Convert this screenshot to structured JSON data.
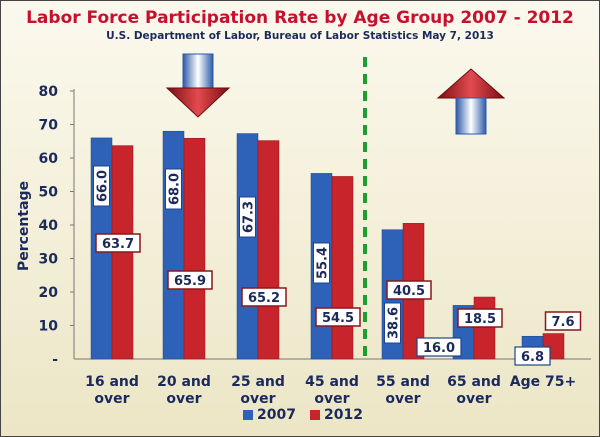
{
  "chart_data": {
    "type": "bar",
    "title": "Labor Force Participation Rate by Age Group 2007 - 2012",
    "subtitle": "U.S. Department of Labor, Bureau of Labor Statistics May 7, 2013",
    "ylabel": "Percentage",
    "xlabel": "",
    "ylim": [
      0,
      80
    ],
    "yticks": [
      80,
      70,
      60,
      50,
      40,
      30,
      20,
      10
    ],
    "y_zero_label": "-",
    "grid": false,
    "legend_position": "bottom",
    "categories": [
      [
        "16 and",
        "over"
      ],
      [
        "20 and",
        "over"
      ],
      [
        "25 and",
        "over"
      ],
      [
        "45 and",
        "over"
      ],
      [
        "55 and",
        "over"
      ],
      [
        "65 and",
        "over"
      ],
      [
        "Age 75+",
        ""
      ]
    ],
    "series": [
      {
        "name": "2007",
        "color": "#2e62b9",
        "values": [
          66.0,
          68.0,
          67.3,
          55.4,
          38.6,
          16.0,
          6.8
        ],
        "labels": [
          "66.0",
          "68.0",
          "67.3",
          "55.4",
          "38.6",
          "16.0",
          "6.8"
        ]
      },
      {
        "name": "2012",
        "color": "#c8242b",
        "values": [
          63.7,
          65.9,
          65.2,
          54.5,
          40.5,
          18.5,
          7.6
        ],
        "labels": [
          "63.7",
          "65.9",
          "65.2",
          "54.5",
          "40.5",
          "18.5",
          "7.6"
        ]
      }
    ],
    "divider": "dashed green line between 45 and over and 55 and over",
    "annotations": [
      "down-arrow-icon",
      "up-arrow-icon"
    ]
  },
  "legend": {
    "items": [
      "2007",
      "2012"
    ]
  }
}
